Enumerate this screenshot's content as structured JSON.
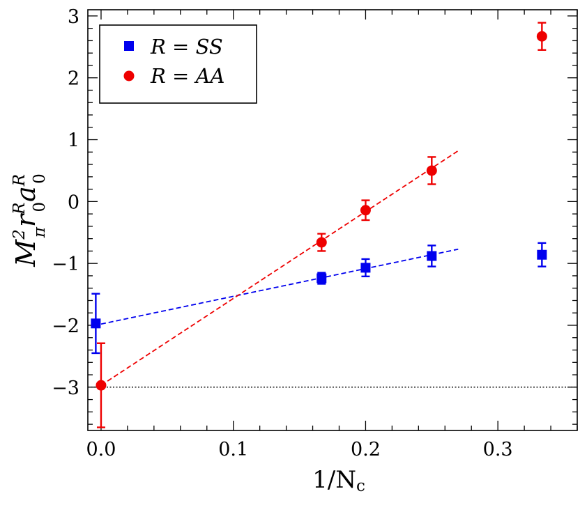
{
  "chart_data": {
    "type": "scatter",
    "title": "",
    "xlabel": "1/N_c",
    "xlabel_main": "1/N",
    "xlabel_sub": "c",
    "ylabel": "M_π^2 r_0^R a_0^R",
    "xlim": [
      -0.01,
      0.36
    ],
    "ylim": [
      -3.7,
      3.1
    ],
    "x_ticks": [
      0.0,
      0.1,
      0.2,
      0.3
    ],
    "x_tick_labels": [
      "0.0",
      "0.1",
      "0.2",
      "0.3"
    ],
    "y_ticks": [
      -3,
      -2,
      -1,
      0,
      1,
      2,
      3
    ],
    "y_tick_labels": [
      "−3",
      "−2",
      "−1",
      "0",
      "1",
      "2",
      "3"
    ],
    "reference_line": {
      "y": -3,
      "style": "dotted",
      "color": "#000000"
    },
    "legend": {
      "position": "top-left",
      "entries": [
        "R = SS",
        "R = AA"
      ]
    },
    "series": [
      {
        "name": "R = SS",
        "color": "#0000ee",
        "marker": "square",
        "points": [
          {
            "x": -0.004,
            "y": -1.97,
            "err": 0.48
          },
          {
            "x": 0.1667,
            "y": -1.24,
            "err": 0.09
          },
          {
            "x": 0.2,
            "y": -1.07,
            "err": 0.14
          },
          {
            "x": 0.25,
            "y": -0.88,
            "err": 0.17
          },
          {
            "x": 0.3333,
            "y": -0.86,
            "err": 0.19
          }
        ],
        "fit": {
          "x_start": 0.0,
          "x_end": 0.27,
          "y_start": -1.98,
          "y_end": -0.77
        }
      },
      {
        "name": "R = AA",
        "color": "#ee0000",
        "marker": "circle",
        "points": [
          {
            "x": 0.0,
            "y": -2.97,
            "err": 0.68
          },
          {
            "x": 0.1667,
            "y": -0.66,
            "err": 0.14
          },
          {
            "x": 0.2,
            "y": -0.14,
            "err": 0.16
          },
          {
            "x": 0.25,
            "y": 0.5,
            "err": 0.22
          },
          {
            "x": 0.3333,
            "y": 2.67,
            "err": 0.22
          }
        ],
        "fit": {
          "x_start": 0.0,
          "x_end": 0.27,
          "y_start": -2.97,
          "y_end": 0.82
        }
      }
    ]
  }
}
